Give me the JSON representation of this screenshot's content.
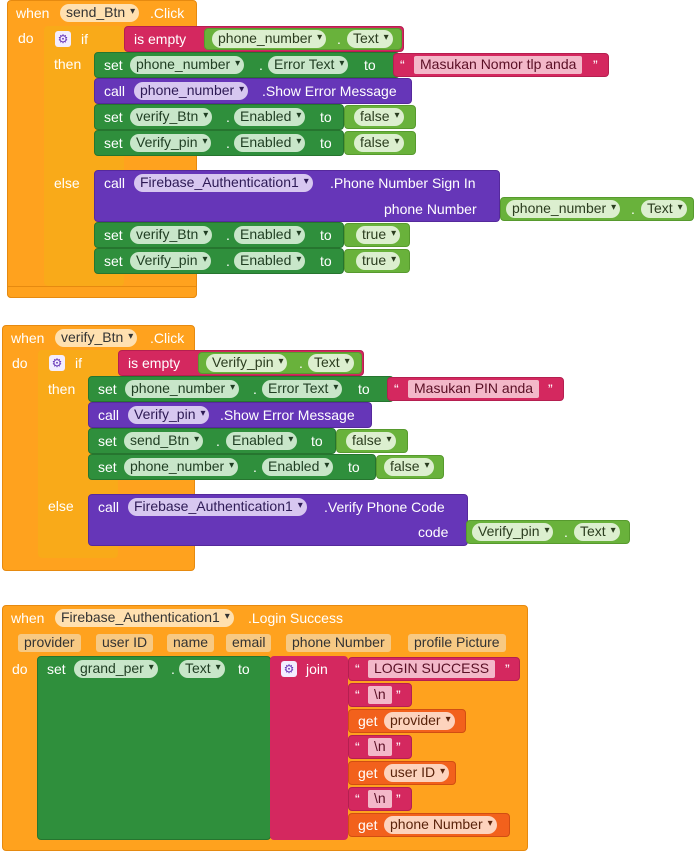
{
  "colors": {
    "event": "#ffa21e",
    "setter": "#2f8f3c",
    "call": "#6636b8",
    "logic": "#d4285f",
    "component": "#69b23b",
    "getter": "#f2611c"
  },
  "common": {
    "when": "when",
    "do": "do",
    "if": "if",
    "then": "then",
    "else": "else",
    "set": "set",
    "call": "call",
    "to": "to",
    "dot": ".",
    "get": "get",
    "is_empty": "is empty",
    "join": "join",
    "quote": "“",
    "quote_close": "”"
  },
  "block1": {
    "component": "send_Btn",
    "event": ".Click",
    "cond_component": "phone_number",
    "cond_prop": "Text",
    "then": [
      {
        "kind": "set",
        "component": "phone_number",
        "prop": "Error Text",
        "value_text": "Masukan Nomor tlp anda"
      },
      {
        "kind": "call",
        "component": "phone_number",
        "method": ".Show Error Message"
      },
      {
        "kind": "set",
        "component": "verify_Btn",
        "prop": "Enabled",
        "value": "false"
      },
      {
        "kind": "set",
        "component": "Verify_pin",
        "prop": "Enabled",
        "value": "false"
      }
    ],
    "else": [
      {
        "kind": "call",
        "component": "Firebase_Authentication1",
        "method": ".Phone Number Sign In",
        "arg_label": "phone Number",
        "arg_component": "phone_number",
        "arg_prop": "Text"
      },
      {
        "kind": "set",
        "component": "verify_Btn",
        "prop": "Enabled",
        "value": "true"
      },
      {
        "kind": "set",
        "component": "Verify_pin",
        "prop": "Enabled",
        "value": "true"
      }
    ]
  },
  "block2": {
    "component": "verify_Btn",
    "event": ".Click",
    "cond_component": "Verify_pin",
    "cond_prop": "Text",
    "then": [
      {
        "kind": "set",
        "component": "phone_number",
        "prop": "Error Text",
        "value_text": "Masukan PIN anda"
      },
      {
        "kind": "call",
        "component": "Verify_pin",
        "method": ".Show Error Message"
      },
      {
        "kind": "set",
        "component": "send_Btn",
        "prop": "Enabled",
        "value": "false"
      },
      {
        "kind": "set",
        "component": "phone_number",
        "prop": "Enabled",
        "value": "false"
      }
    ],
    "else": [
      {
        "kind": "call",
        "component": "Firebase_Authentication1",
        "method": ".Verify Phone Code",
        "arg_label": "code",
        "arg_component": "Verify_pin",
        "arg_prop": "Text"
      }
    ]
  },
  "block3": {
    "component": "Firebase_Authentication1",
    "event": ".Login Success",
    "params": [
      "provider",
      "user ID",
      "name",
      "email",
      "phone Number",
      "profile Picture"
    ],
    "set_component": "grand_per",
    "set_prop": "Text",
    "join_items": [
      {
        "type": "text",
        "value": "LOGIN SUCCESS"
      },
      {
        "type": "text",
        "value": "\\n"
      },
      {
        "type": "get",
        "value": "provider"
      },
      {
        "type": "text",
        "value": "\\n"
      },
      {
        "type": "get",
        "value": "user ID"
      },
      {
        "type": "text",
        "value": "\\n"
      },
      {
        "type": "get",
        "value": "phone Number"
      }
    ]
  }
}
